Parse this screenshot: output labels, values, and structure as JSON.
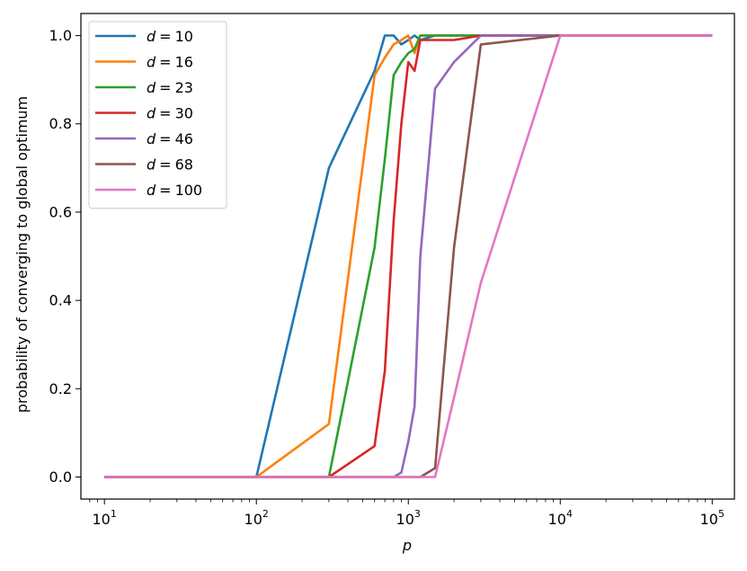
{
  "chart_data": {
    "type": "line",
    "xscale": "log",
    "xlabel": "p",
    "ylabel": "probability of converging to global optimum",
    "xlim": [
      7,
      140000
    ],
    "ylim": [
      -0.05,
      1.05
    ],
    "grid": false,
    "legend": "upper-left",
    "x_ticks": [
      {
        "value": 10,
        "base": "10",
        "exp": "1"
      },
      {
        "value": 100,
        "base": "10",
        "exp": "2"
      },
      {
        "value": 1000,
        "base": "10",
        "exp": "3"
      },
      {
        "value": 10000,
        "base": "10",
        "exp": "4"
      },
      {
        "value": 100000,
        "base": "10",
        "exp": "5"
      }
    ],
    "y_ticks": [
      {
        "value": 0.0,
        "label": "0.0"
      },
      {
        "value": 0.2,
        "label": "0.2"
      },
      {
        "value": 0.4,
        "label": "0.4"
      },
      {
        "value": 0.6,
        "label": "0.6"
      },
      {
        "value": 0.8,
        "label": "0.8"
      },
      {
        "value": 1.0,
        "label": "1.0"
      }
    ],
    "series": [
      {
        "name": "d = 10",
        "var": "d",
        "eq": "=",
        "val": "10",
        "color": "#1f77b4",
        "x": [
          10,
          100,
          300,
          600,
          700,
          800,
          900,
          1000,
          1100,
          1200,
          1500,
          2000,
          3000,
          10000,
          100000
        ],
        "y": [
          0,
          0,
          0.7,
          0.92,
          1.0,
          1.0,
          0.98,
          0.99,
          1.0,
          0.99,
          1.0,
          1.0,
          1.0,
          1.0,
          1.0
        ]
      },
      {
        "name": "d = 16",
        "var": "d",
        "eq": "=",
        "val": "16",
        "color": "#ff7f0e",
        "x": [
          10,
          100,
          300,
          600,
          700,
          800,
          900,
          1000,
          1100,
          1200,
          1500,
          2000,
          3000,
          10000,
          100000
        ],
        "y": [
          0,
          0,
          0.12,
          0.91,
          0.95,
          0.98,
          0.99,
          1.0,
          0.96,
          1.0,
          1.0,
          1.0,
          1.0,
          1.0,
          1.0
        ]
      },
      {
        "name": "d = 23",
        "var": "d",
        "eq": "=",
        "val": "23",
        "color": "#2ca02c",
        "x": [
          10,
          100,
          300,
          600,
          700,
          800,
          900,
          1000,
          1100,
          1200,
          1500,
          2000,
          3000,
          10000,
          100000
        ],
        "y": [
          0,
          0,
          0,
          0.52,
          0.72,
          0.91,
          0.94,
          0.96,
          0.97,
          1.0,
          1.0,
          1.0,
          1.0,
          1.0,
          1.0
        ]
      },
      {
        "name": "d = 30",
        "var": "d",
        "eq": "=",
        "val": "30",
        "color": "#d62728",
        "x": [
          10,
          100,
          300,
          600,
          700,
          800,
          900,
          1000,
          1100,
          1200,
          1500,
          2000,
          3000,
          10000,
          100000
        ],
        "y": [
          0,
          0,
          0,
          0.07,
          0.24,
          0.58,
          0.8,
          0.94,
          0.92,
          0.99,
          0.99,
          0.99,
          1.0,
          1.0,
          1.0
        ]
      },
      {
        "name": "d = 46",
        "var": "d",
        "eq": "=",
        "val": "46",
        "color": "#9467bd",
        "x": [
          10,
          100,
          300,
          600,
          700,
          800,
          900,
          1000,
          1100,
          1200,
          1500,
          2000,
          3000,
          10000,
          100000
        ],
        "y": [
          0,
          0,
          0,
          0,
          0,
          0,
          0.01,
          0.08,
          0.16,
          0.5,
          0.88,
          0.94,
          1.0,
          1.0,
          1.0
        ]
      },
      {
        "name": "d = 68",
        "var": "d",
        "eq": "=",
        "val": "68",
        "color": "#8c564b",
        "x": [
          10,
          100,
          300,
          600,
          700,
          800,
          900,
          1000,
          1100,
          1200,
          1500,
          2000,
          3000,
          10000,
          100000
        ],
        "y": [
          0,
          0,
          0,
          0,
          0,
          0,
          0,
          0,
          0,
          0,
          0.02,
          0.52,
          0.98,
          1.0,
          1.0
        ]
      },
      {
        "name": "d = 100",
        "var": "d",
        "eq": "=",
        "val": "100",
        "color": "#e377c2",
        "x": [
          10,
          100,
          300,
          600,
          700,
          800,
          900,
          1000,
          1100,
          1200,
          1500,
          2000,
          3000,
          10000,
          100000
        ],
        "y": [
          0,
          0,
          0,
          0,
          0,
          0,
          0,
          0,
          0,
          0,
          0,
          0.18,
          0.44,
          1.0,
          1.0
        ]
      }
    ]
  }
}
